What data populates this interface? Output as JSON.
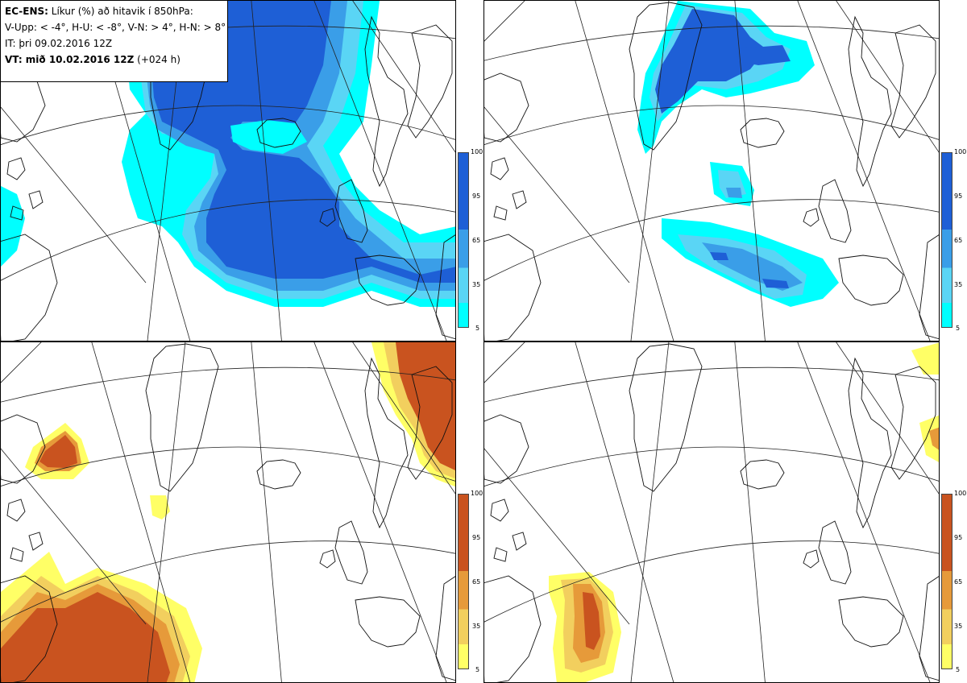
{
  "info": {
    "line1_bold": "EC-ENS:",
    "line1_rest": " Líkur (%) að hitavik í 850hPa:",
    "line2": "V-Upp: < -4°, H-U: < -8°, V-N: > 4°, H-N: > 8°",
    "line3": "IT: þri 09.02.2016 12Z",
    "line4_bold": "VT: mið 10.02.2016 12Z",
    "line4_rest": " (+024 h)"
  },
  "colorbar": {
    "ticks": [
      "100",
      "95",
      "65",
      "35",
      "5"
    ],
    "cold_colors": [
      "#00ffff",
      "#5ad5f5",
      "#3a9ee8",
      "#1e5fd6"
    ],
    "warm_colors": [
      "#ffff66",
      "#f2cf5e",
      "#e69a3a",
      "#c9531f"
    ]
  },
  "panels": [
    {
      "label": "V-Upp",
      "scheme": "cold"
    },
    {
      "label": "H-U",
      "scheme": "cold"
    },
    {
      "label": "V-N",
      "scheme": "warm"
    },
    {
      "label": "H-N",
      "scheme": "warm"
    }
  ]
}
